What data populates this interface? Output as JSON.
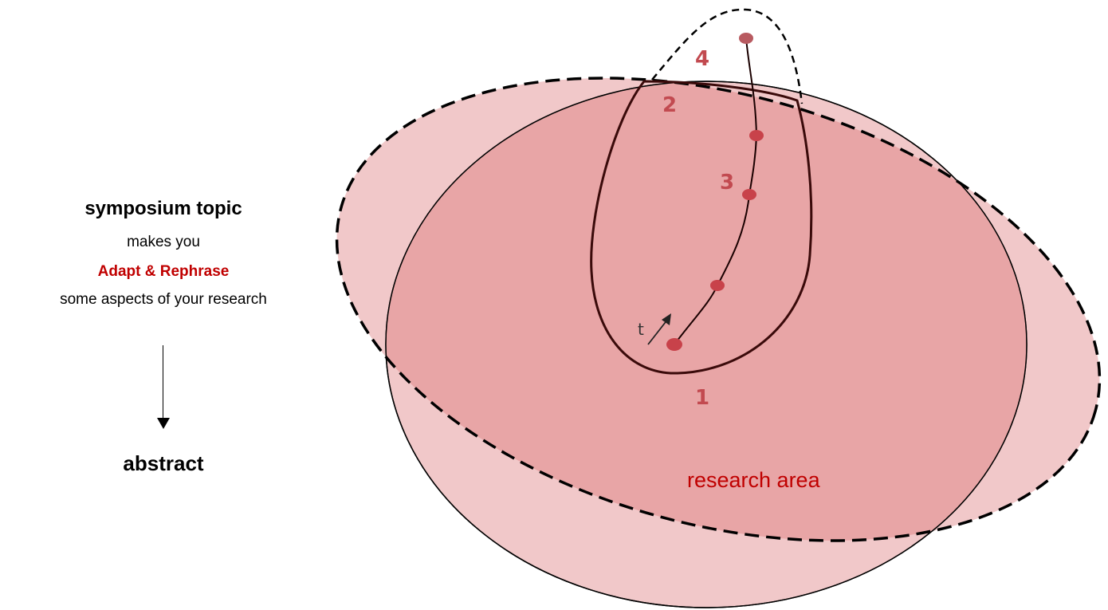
{
  "left": {
    "topic": "symposium topic",
    "makes_you": "makes you",
    "adapt": "Adapt & Rephrase",
    "aspects": "some aspects of your research",
    "abstract": "abstract"
  },
  "diagram": {
    "research_area_label": "research area",
    "time_label": "t",
    "points": [
      {
        "label": "1"
      },
      {
        "label": "2"
      },
      {
        "label": "3"
      },
      {
        "label": "4"
      }
    ]
  },
  "colors": {
    "area_fill": "#e8a5a6",
    "outer_fill": "#f1c8c9",
    "accent": "#c00000",
    "point": "#c8424a"
  }
}
